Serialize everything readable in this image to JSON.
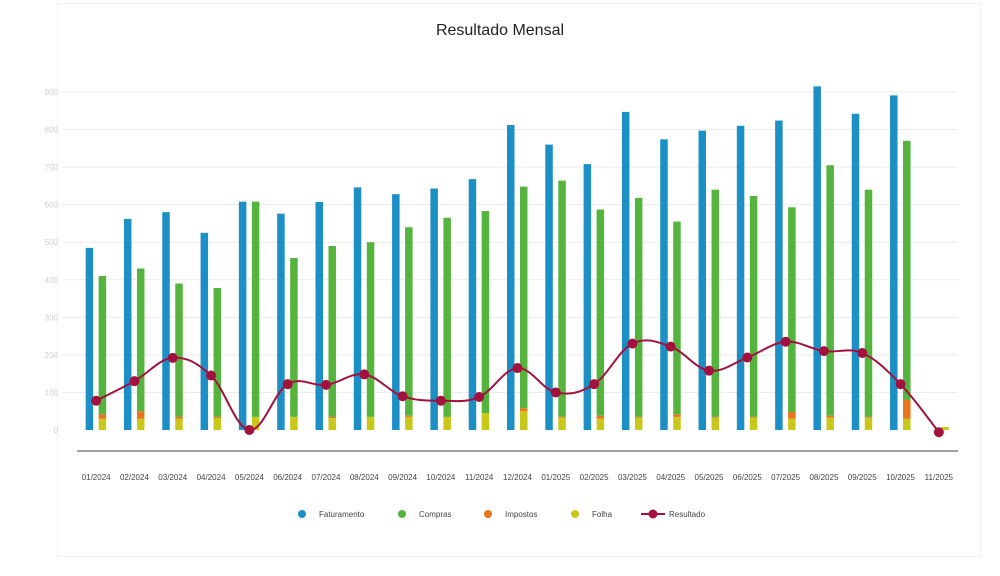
{
  "chart_data": {
    "type": "bar",
    "title": "Resultado Mensal",
    "categories": [
      "01/2024",
      "02/2024",
      "03/2024",
      "04/2024",
      "05/2024",
      "06/2024",
      "07/2024",
      "08/2024",
      "09/2024",
      "10/2024",
      "11/2024",
      "12/2024",
      "01/2025",
      "02/2025",
      "03/2025",
      "04/2025",
      "05/2025",
      "06/2025",
      "07/2025",
      "08/2025",
      "09/2025",
      "10/2025",
      "11/2025"
    ],
    "ylim": [
      0,
      900
    ],
    "yticks": [
      "0",
      "100",
      "200",
      "300",
      "400",
      "500",
      "600",
      "700",
      "800",
      "900"
    ],
    "grid": true,
    "legend_position": "bottom",
    "series": [
      {
        "name": "Faturamento",
        "type": "bar",
        "color": "#1c8fc4",
        "values": [
          485,
          562,
          580,
          525,
          608,
          576,
          607,
          646,
          628,
          643,
          668,
          812,
          760,
          708,
          847,
          774,
          797,
          810,
          824,
          915,
          842,
          891,
          0
        ]
      },
      {
        "name": "Compras",
        "type": "bar",
        "color": "#55b43d",
        "values": [
          410,
          430,
          390,
          378,
          608,
          458,
          490,
          500,
          540,
          565,
          583,
          648,
          664,
          587,
          618,
          555,
          640,
          623,
          593,
          705,
          640,
          770,
          0
        ]
      },
      {
        "name": "Impostos",
        "type": "bar",
        "color": "#e8741c",
        "values": [
          42,
          50,
          35,
          35,
          18,
          32,
          35,
          33,
          38,
          35,
          45,
          58,
          35,
          38,
          35,
          42,
          35,
          35,
          48,
          38,
          35,
          80,
          0
        ]
      },
      {
        "name": "Folha",
        "type": "bar",
        "color": "#c9c81a",
        "values": [
          30,
          30,
          30,
          32,
          35,
          35,
          32,
          35,
          35,
          35,
          45,
          50,
          33,
          30,
          33,
          35,
          33,
          33,
          30,
          33,
          33,
          30,
          8
        ]
      },
      {
        "name": "Resultado",
        "type": "line",
        "color": "#a3123f",
        "values": [
          78,
          130,
          192,
          145,
          0,
          122,
          120,
          148,
          90,
          78,
          88,
          165,
          100,
          122,
          230,
          222,
          158,
          193,
          235,
          210,
          205,
          122,
          -6
        ]
      }
    ]
  }
}
